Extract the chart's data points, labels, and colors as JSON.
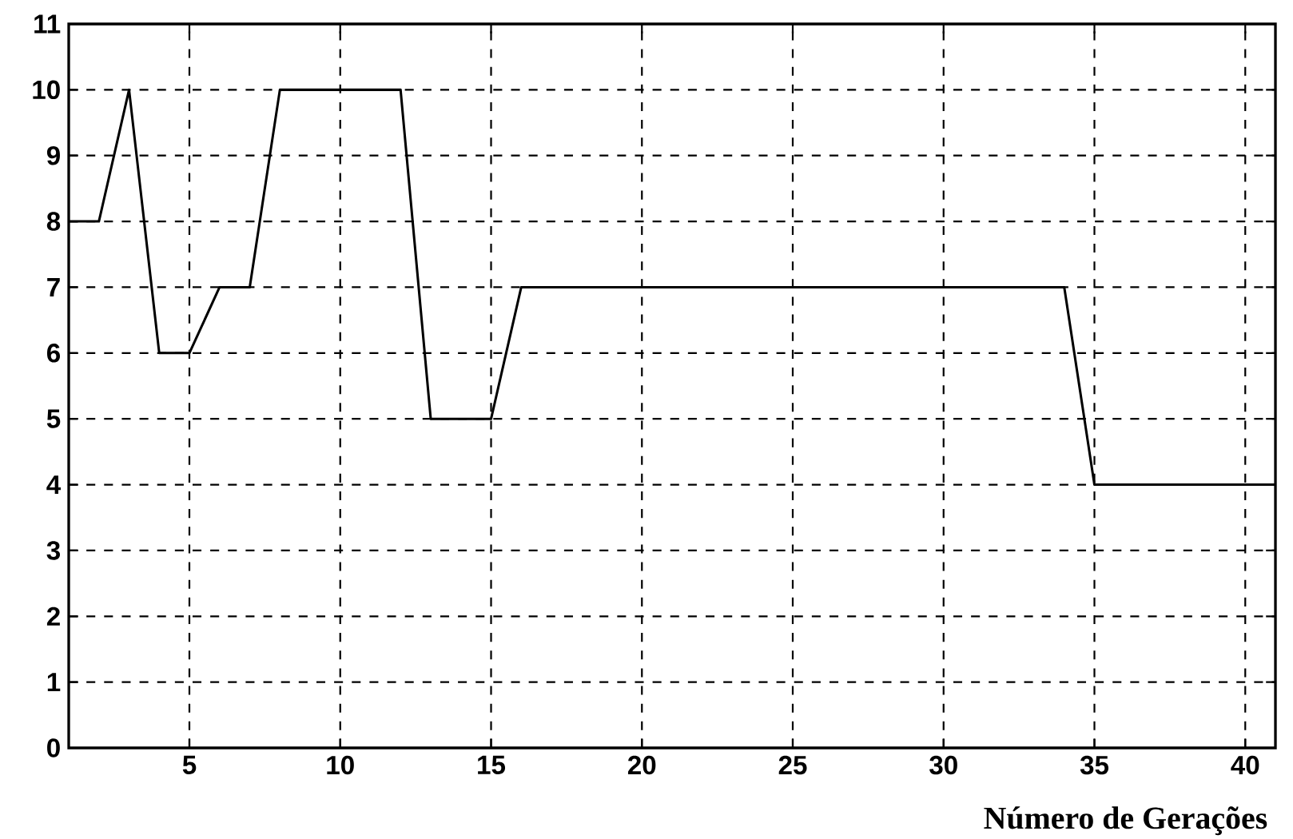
{
  "chart_data": {
    "type": "line",
    "xlabel": "Número de Gerações",
    "x": [
      1,
      2,
      3,
      4,
      5,
      6,
      7,
      8,
      9,
      10,
      11,
      12,
      13,
      14,
      15,
      16,
      17,
      18,
      19,
      20,
      21,
      22,
      23,
      24,
      25,
      26,
      27,
      28,
      29,
      30,
      31,
      32,
      33,
      34,
      35,
      36,
      37,
      38,
      39,
      40,
      41
    ],
    "series": [
      {
        "color": "#000000",
        "values": [
          8,
          8,
          10,
          6,
          6,
          7,
          7,
          10,
          10,
          10,
          10,
          10,
          5,
          5,
          5,
          7,
          7,
          7,
          7,
          7,
          7,
          7,
          7,
          7,
          7,
          7,
          7,
          7,
          7,
          7,
          7,
          7,
          7,
          7,
          4,
          4,
          4,
          4,
          4,
          4,
          4
        ]
      }
    ],
    "xlim": [
      1,
      41
    ],
    "ylim": [
      0,
      11
    ],
    "xticks": [
      5,
      10,
      15,
      20,
      25,
      30,
      35,
      40
    ],
    "yticks": [
      0,
      1,
      2,
      3,
      4,
      5,
      6,
      7,
      8,
      9,
      10,
      11
    ],
    "grid": true,
    "marker": "none",
    "line_style": "solid"
  }
}
